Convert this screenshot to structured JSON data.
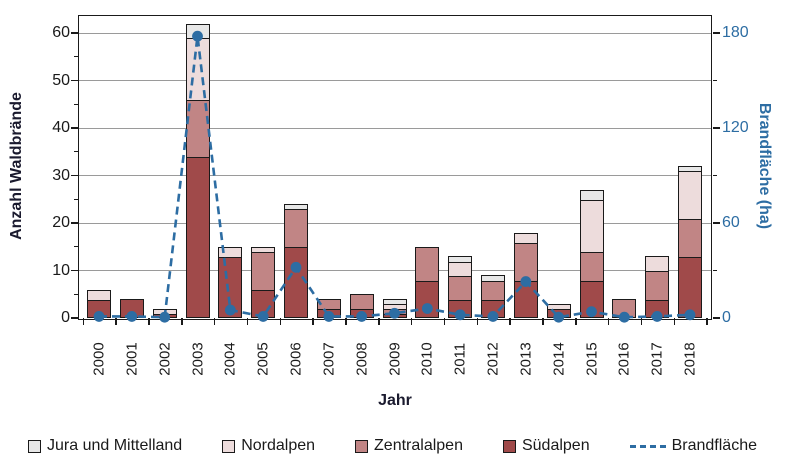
{
  "chart_data": {
    "type": "bar",
    "subtype": "stacked-bars-with-line",
    "title": "",
    "categories": [
      "2000",
      "2001",
      "2002",
      "2003",
      "2004",
      "2005",
      "2006",
      "2007",
      "2008",
      "2009",
      "2010",
      "2011",
      "2012",
      "2013",
      "2014",
      "2015",
      "2016",
      "2017",
      "2018"
    ],
    "series": [
      {
        "name": "Südalpen",
        "color": "#a04a4a",
        "values": [
          4,
          4,
          1,
          34,
          13,
          6,
          15,
          2,
          2,
          1,
          8,
          4,
          4,
          8,
          2,
          8,
          0,
          4,
          13
        ]
      },
      {
        "name": "Zentralalpen",
        "color": "#c18585",
        "values": [
          0,
          0,
          0,
          12,
          0,
          8,
          8,
          2,
          3,
          1,
          7,
          5,
          4,
          8,
          0,
          6,
          4,
          6,
          8
        ]
      },
      {
        "name": "Nordalpen",
        "color": "#eddcdc",
        "values": [
          2,
          0,
          1,
          13,
          2,
          1,
          0,
          0,
          0,
          1,
          0,
          3,
          0,
          2,
          1,
          11,
          0,
          3,
          10
        ]
      },
      {
        "name": "Jura und Mittelland",
        "color": "#e7e7e7",
        "values": [
          0,
          0,
          0,
          3,
          0,
          0,
          1,
          0,
          0,
          1,
          0,
          1,
          1,
          0,
          0,
          2,
          0,
          0,
          1
        ]
      }
    ],
    "line": {
      "name": "Brandfläche",
      "color": "#2d6da3",
      "values": [
        1,
        1,
        0.5,
        178,
        5,
        1,
        32,
        1,
        1,
        3,
        6,
        2,
        1,
        23,
        0.5,
        4,
        0.5,
        1,
        2
      ]
    },
    "left_axis": {
      "label": "Anzahl Waldbrände",
      "ticks": [
        0,
        10,
        20,
        30,
        40,
        50,
        60
      ],
      "minor_step": 5,
      "max": 60
    },
    "right_axis": {
      "label": "Brandfläche (ha)",
      "ticks": [
        0,
        60,
        120,
        180
      ],
      "minor_step": 30,
      "max": 180
    },
    "x_axis": {
      "label": "Jahr"
    },
    "legend": [
      "Jura und Mittelland",
      "Nordalpen",
      "Zentralalpen",
      "Südalpen",
      "Brandfläche"
    ],
    "colors": {
      "axis": "#1a1a1a",
      "grid": "#9a9a9a",
      "accent_blue": "#2d6da3"
    },
    "grid": true,
    "legend_position": "bottom"
  }
}
